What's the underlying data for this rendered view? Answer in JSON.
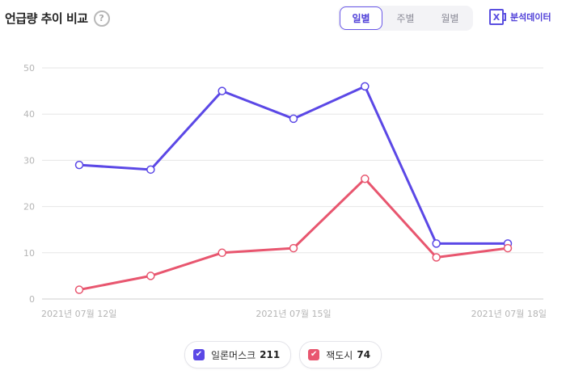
{
  "header": {
    "title": "언급량 추이 비교",
    "help_icon": "?"
  },
  "period_tabs": [
    {
      "label": "일별",
      "active": true
    },
    {
      "label": "주별",
      "active": false
    },
    {
      "label": "월별",
      "active": false
    }
  ],
  "export": {
    "icon_glyph": "X",
    "label": "분석데이터"
  },
  "colors": {
    "series_1": "#5b48e6",
    "series_2": "#e8566f",
    "grid": "#e6e6e6",
    "axis_text": "#b5b5b5"
  },
  "legend": [
    {
      "name": "일론머스크",
      "count": "211",
      "check": "✔"
    },
    {
      "name": "잭도시",
      "count": "74",
      "check": "✔"
    }
  ],
  "chart_data": {
    "type": "line",
    "x_labels": [
      "2021년 07월 12일",
      "",
      "",
      "2021년 07월 15일",
      "",
      "",
      "2021년 07월 18일"
    ],
    "x": [
      "2021-07-12",
      "2021-07-13",
      "2021-07-14",
      "2021-07-15",
      "2021-07-16",
      "2021-07-17",
      "2021-07-18"
    ],
    "y_ticks": [
      0,
      10,
      20,
      30,
      40,
      50
    ],
    "ylim": [
      0,
      50
    ],
    "grid": true,
    "legend_position": "bottom-center",
    "series": [
      {
        "name": "일론머스크",
        "values": [
          29,
          28,
          45,
          39,
          46,
          12,
          12
        ]
      },
      {
        "name": "잭도시",
        "values": [
          2,
          5,
          10,
          11,
          26,
          9,
          11
        ]
      }
    ]
  }
}
